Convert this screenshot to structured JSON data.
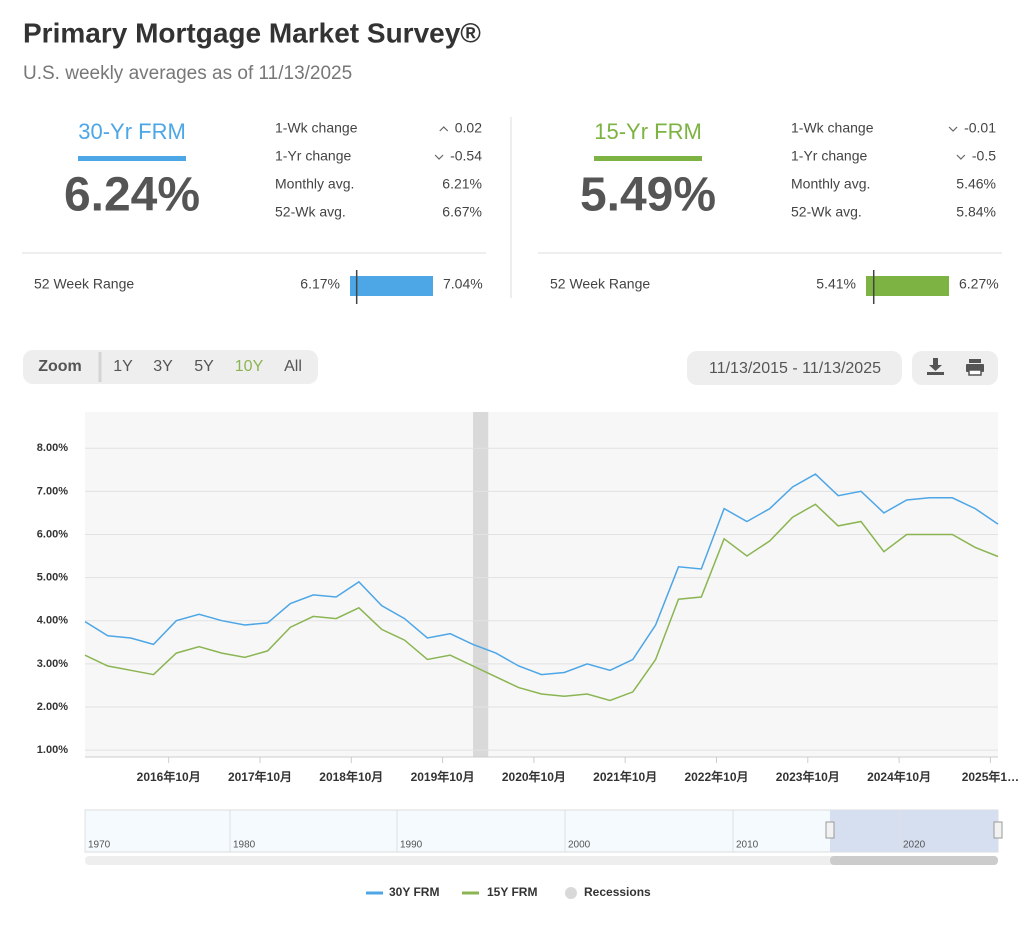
{
  "header": {
    "title": "Primary Mortgage Market Survey®",
    "subtitle": "U.S. weekly averages as of 11/13/2025"
  },
  "cards": [
    {
      "name": "30-Yr FRM",
      "color": "#4da6e6",
      "rate": "6.24%",
      "stats": [
        {
          "label": "1-Wk change",
          "direction": "up",
          "value": "0.02"
        },
        {
          "label": "1-Yr change",
          "direction": "down",
          "value": "-0.54"
        },
        {
          "label": "Monthly avg.",
          "value": "6.21%"
        },
        {
          "label": "52-Wk avg.",
          "value": "6.67%"
        }
      ],
      "range": {
        "label": "52 Week Range",
        "low": "6.17%",
        "high": "7.04%"
      }
    },
    {
      "name": "15-Yr FRM",
      "color": "#7cb342",
      "rate": "5.49%",
      "stats": [
        {
          "label": "1-Wk change",
          "direction": "down",
          "value": "-0.01"
        },
        {
          "label": "1-Yr change",
          "direction": "down",
          "value": "-0.5"
        },
        {
          "label": "Monthly avg.",
          "value": "5.46%"
        },
        {
          "label": "52-Wk avg.",
          "value": "5.84%"
        }
      ],
      "range": {
        "label": "52 Week Range",
        "low": "5.41%",
        "high": "6.27%"
      }
    }
  ],
  "toolbar": {
    "zoom_label": "Zoom",
    "zoom_options": [
      "1Y",
      "3Y",
      "5Y",
      "10Y",
      "All"
    ],
    "selected": "10Y",
    "date_range": "11/13/2015 - 11/13/2025"
  },
  "chart_data": {
    "type": "line",
    "x": [
      "2015-11",
      "2016-02",
      "2016-05",
      "2016-08",
      "2016-11",
      "2017-02",
      "2017-05",
      "2017-08",
      "2017-11",
      "2018-02",
      "2018-05",
      "2018-08",
      "2018-11",
      "2019-02",
      "2019-05",
      "2019-08",
      "2019-11",
      "2020-02",
      "2020-05",
      "2020-08",
      "2020-11",
      "2021-02",
      "2021-05",
      "2021-08",
      "2021-11",
      "2022-02",
      "2022-05",
      "2022-08",
      "2022-11",
      "2023-02",
      "2023-05",
      "2023-08",
      "2023-11",
      "2024-02",
      "2024-05",
      "2024-08",
      "2024-11",
      "2025-02",
      "2025-05",
      "2025-08",
      "2025-11"
    ],
    "series": [
      {
        "name": "30Y FRM",
        "color": "#4da6e6",
        "values": [
          3.98,
          3.65,
          3.6,
          3.45,
          4.0,
          4.15,
          4.0,
          3.9,
          3.95,
          4.4,
          4.6,
          4.55,
          4.9,
          4.35,
          4.05,
          3.6,
          3.7,
          3.45,
          3.25,
          2.95,
          2.75,
          2.8,
          3.0,
          2.85,
          3.1,
          3.9,
          5.25,
          5.2,
          6.6,
          6.3,
          6.6,
          7.1,
          7.4,
          6.9,
          7.0,
          6.5,
          6.8,
          6.85,
          6.85,
          6.6,
          6.24
        ]
      },
      {
        "name": "15Y FRM",
        "color": "#8bb552",
        "values": [
          3.2,
          2.95,
          2.85,
          2.75,
          3.25,
          3.4,
          3.25,
          3.15,
          3.3,
          3.85,
          4.1,
          4.05,
          4.3,
          3.8,
          3.55,
          3.1,
          3.2,
          2.95,
          2.7,
          2.45,
          2.3,
          2.25,
          2.3,
          2.15,
          2.35,
          3.1,
          4.5,
          4.55,
          5.9,
          5.5,
          5.85,
          6.4,
          6.7,
          6.2,
          6.3,
          5.6,
          6.0,
          6.0,
          6.0,
          5.7,
          5.49
        ]
      }
    ],
    "recessions": {
      "name": "Recessions",
      "color": "#d9d9d9",
      "periods": [
        [
          "2020-02",
          "2020-04"
        ]
      ]
    },
    "xlim": [
      "2015-11",
      "2025-11"
    ],
    "xticks": [
      {
        "value": "2016-10",
        "label": "2016年10月"
      },
      {
        "value": "2017-10",
        "label": "2017年10月"
      },
      {
        "value": "2018-10",
        "label": "2018年10月"
      },
      {
        "value": "2019-10",
        "label": "2019年10月"
      },
      {
        "value": "2020-10",
        "label": "2020年10月"
      },
      {
        "value": "2021-10",
        "label": "2021年10月"
      },
      {
        "value": "2022-10",
        "label": "2022年10月"
      },
      {
        "value": "2023-10",
        "label": "2023年10月"
      },
      {
        "value": "2024-10",
        "label": "2024年10月"
      },
      {
        "value": "2025-10",
        "label": "2025年1…"
      }
    ],
    "ylim": [
      0.84,
      8.84
    ],
    "yticks": [
      {
        "value": 1,
        "label": "1.00%"
      },
      {
        "value": 2,
        "label": "2.00%"
      },
      {
        "value": 3,
        "label": "3.00%"
      },
      {
        "value": 4,
        "label": "4.00%"
      },
      {
        "value": 5,
        "label": "5.00%"
      },
      {
        "value": 6,
        "label": "6.00%"
      },
      {
        "value": 7,
        "label": "7.00%"
      },
      {
        "value": 8,
        "label": "8.00%"
      }
    ],
    "grid": true
  },
  "navigator": {
    "labels": [
      "1970",
      "1980",
      "1990",
      "2000",
      "2010",
      "2020"
    ]
  }
}
